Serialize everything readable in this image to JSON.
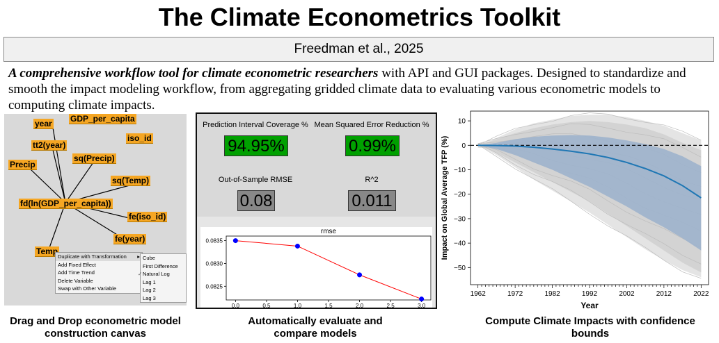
{
  "header": {
    "title": "The Climate Econometrics Toolkit",
    "authors": "Freedman et al., 2025",
    "desc_bold": "A comprehensive workflow tool for climate econometric researchers",
    "desc_rest": " with API and GUI packages. Designed to standardize and smooth the impact modeling workflow, from aggregating gridded climate data to evaluating various econometric models to computing climate impacts."
  },
  "canvas": {
    "nodes": [
      "year",
      "GDP_per_capita",
      "iso_id",
      "tt2(year)",
      "sq(Precip)",
      "Precip",
      "sq(Temp)",
      "fd(ln(GDP_per_capita))",
      "fe(iso_id)",
      "fe(year)",
      "Temp"
    ],
    "menu": [
      "Duplicate with Transformation",
      "Add Fixed Effect",
      "Add Time Trend",
      "Delete Variable",
      "Swap with Other Variable"
    ],
    "submenu": [
      "Cube",
      "First Difference",
      "Natural Log",
      "Lag 1",
      "Lag 2",
      "Lag 3"
    ],
    "submenu_arrow": "▸",
    "check": "✓",
    "colors": {
      "node": "#f5a623",
      "bg": "#d9d9d9"
    }
  },
  "metrics": {
    "coverage_label": "Prediction Interval Coverage %",
    "coverage_value": "94.95%",
    "mse_label": "Mean Squared Error Reduction %",
    "mse_value": "0.99%",
    "rmse_label": "Out-of-Sample RMSE",
    "rmse_value": "0.08",
    "r2_label": "R^2",
    "r2_value": "0.011",
    "colors": {
      "good": "#00a000",
      "neutral": "#888888"
    }
  },
  "chart_data": [
    {
      "type": "line",
      "title": "rmse",
      "x": [
        0.0,
        1.0,
        2.0,
        3.0
      ],
      "values": [
        0.0835,
        0.08338,
        0.08275,
        0.08222
      ],
      "xlim": [
        -0.15,
        3.15
      ],
      "ylim": [
        0.0822,
        0.0836
      ],
      "xticks": [
        "0.0",
        "0.5",
        "1.0",
        "1.5",
        "2.0",
        "2.5",
        "3.0"
      ],
      "yticks": [
        "0.0825",
        "0.0830",
        "0.0835"
      ],
      "xlabel": "",
      "ylabel": "",
      "line_color": "#ff0000",
      "marker_color": "#0000ff"
    },
    {
      "type": "area",
      "title": "",
      "xlabel": "Year",
      "ylabel": "Impact on Global Average TFP (%)",
      "x_range": [
        1962,
        2022
      ],
      "xticks": [
        "1962",
        "1972",
        "1982",
        "1992",
        "2002",
        "2012",
        "2022"
      ],
      "yticks": [
        "10",
        "0",
        "−10",
        "−20",
        "−30",
        "−40",
        "−50"
      ],
      "ylim": [
        -57,
        14
      ],
      "series": [
        {
          "name": "mean",
          "x": [
            1962,
            1967,
            1972,
            1977,
            1982,
            1987,
            1992,
            1997,
            2002,
            2007,
            2012,
            2017,
            2022
          ],
          "values": [
            0,
            -0.1,
            -0.3,
            -0.8,
            -1.5,
            -2.4,
            -3.5,
            -5,
            -7,
            -9.5,
            -12.5,
            -16.5,
            -21.5
          ]
        },
        {
          "name": "ci_upper",
          "x": [
            1962,
            1967,
            1972,
            1977,
            1982,
            1987,
            1992,
            1997,
            2002,
            2007,
            2012,
            2017,
            2022
          ],
          "values": [
            0,
            1,
            2.5,
            3.5,
            4,
            4.2,
            4,
            3.2,
            2,
            0.5,
            -1.5,
            -4.5,
            -8.5
          ]
        },
        {
          "name": "ci_lower",
          "x": [
            1962,
            1967,
            1972,
            1977,
            1982,
            1987,
            1992,
            1997,
            2002,
            2007,
            2012,
            2017,
            2022
          ],
          "values": [
            0,
            -1.5,
            -4,
            -7,
            -10,
            -13.5,
            -17,
            -21,
            -25,
            -29.5,
            -33.5,
            -38,
            -43
          ]
        },
        {
          "name": "spread_upper",
          "x": [
            1962,
            1967,
            1972,
            1977,
            1982,
            1987,
            1992,
            1997,
            2002,
            2007,
            2012,
            2017,
            2022
          ],
          "values": [
            0,
            2.5,
            5,
            7,
            8.5,
            9.5,
            10,
            9.5,
            8.5,
            7,
            4.5,
            1,
            -2
          ]
        },
        {
          "name": "spread_lower",
          "x": [
            1962,
            1967,
            1972,
            1977,
            1982,
            1987,
            1992,
            1997,
            2002,
            2007,
            2012,
            2017,
            2022
          ],
          "values": [
            0,
            -3,
            -7,
            -11,
            -15,
            -19,
            -23,
            -28,
            -33,
            -38,
            -43,
            -48,
            -52
          ]
        },
        {
          "name": "outlier_high",
          "x": [
            1962,
            1967,
            1972,
            1977,
            1982,
            1987,
            1992,
            1997,
            2002,
            2007,
            2012,
            2017,
            2022
          ],
          "values": [
            0,
            3,
            6.5,
            9,
            10.5,
            12,
            12.5,
            12.5,
            11.5,
            10,
            8,
            5,
            2
          ]
        },
        {
          "name": "outlier_low",
          "x": [
            1962,
            1967,
            1972,
            1977,
            1982,
            1987,
            1992,
            1997,
            2002,
            2007,
            2012,
            2017,
            2022
          ],
          "values": [
            0,
            -4,
            -9,
            -14,
            -18.5,
            -23,
            -27.5,
            -32.5,
            -37.5,
            -42.5,
            -47,
            -51,
            -54
          ]
        }
      ],
      "colors": {
        "mean": "#1f77b4",
        "ci": "#9db2cc",
        "spread": "#d3d3d3",
        "outlier": "#c4c4c4",
        "zero": "#000000"
      }
    }
  ],
  "captions": {
    "canvas": "Drag and Drop econometric model construction canvas",
    "evaluate": "Automatically evaluate and compare models",
    "impacts": "Compute Climate Impacts with confidence bounds"
  }
}
